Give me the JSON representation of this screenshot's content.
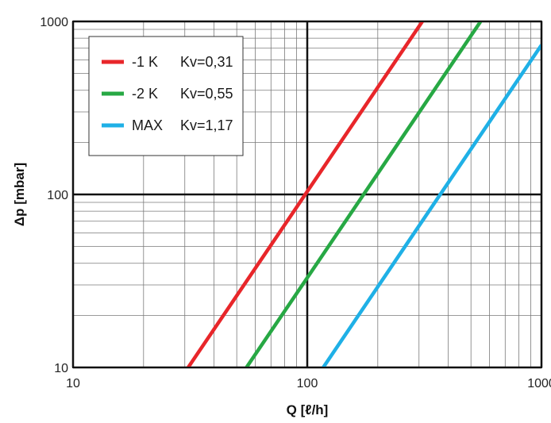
{
  "chart_data": {
    "type": "line",
    "xscale": "log",
    "yscale": "log",
    "xlim": [
      10,
      1000
    ],
    "ylim": [
      10,
      1000
    ],
    "xlabel": "Q [ℓ/h]",
    "ylabel": "Δp [mbar]",
    "x_ticks": [
      10,
      100,
      1000
    ],
    "x_tick_labels": [
      "10",
      "100",
      "1000"
    ],
    "y_ticks": [
      10,
      100,
      1000
    ],
    "y_tick_labels": [
      "10",
      "100",
      "1000"
    ],
    "grid": true,
    "legend_position": "top-left",
    "series": [
      {
        "label": "-1 K",
        "kv_text": "Kv=0,31",
        "kv": 0.31,
        "color": "#e8262a",
        "x": [
          31,
          100,
          310
        ],
        "y": [
          10,
          104,
          1000
        ]
      },
      {
        "label": "-2 K",
        "kv_text": "Kv=0,55",
        "kv": 0.55,
        "color": "#27a844",
        "x": [
          55,
          100,
          550
        ],
        "y": [
          10,
          33,
          1000
        ]
      },
      {
        "label": "MAX",
        "kv_text": "Kv=1,17",
        "kv": 1.17,
        "color": "#1fb0e6",
        "x": [
          117,
          400,
          1000
        ],
        "y": [
          10,
          117,
          730
        ]
      }
    ]
  }
}
